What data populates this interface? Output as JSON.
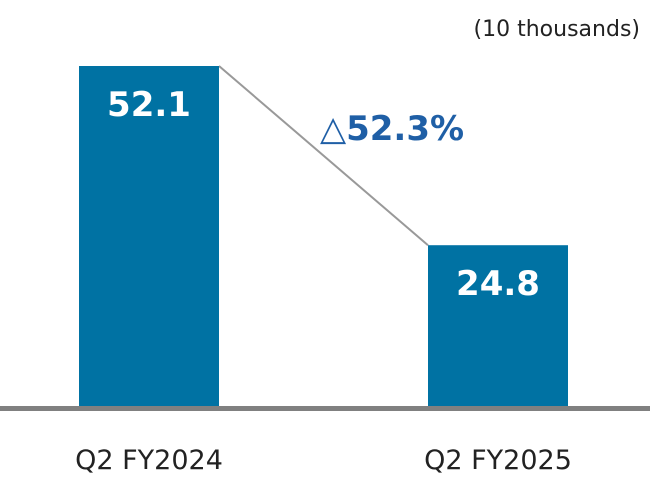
{
  "chart_data": {
    "type": "bar",
    "unit_label": "(10 thousands)",
    "categories": [
      "Q2 FY2024",
      "Q2 FY2025"
    ],
    "values": [
      52.1,
      24.8
    ],
    "value_labels": [
      "52.1",
      "24.8"
    ],
    "change_label": "△52.3%",
    "ylim": [
      0,
      52.1
    ],
    "grid": false,
    "colors": {
      "bar": "#0072a3",
      "connector": "#999999",
      "baseline": "#808080",
      "change_text": "#1f5fa6"
    }
  }
}
